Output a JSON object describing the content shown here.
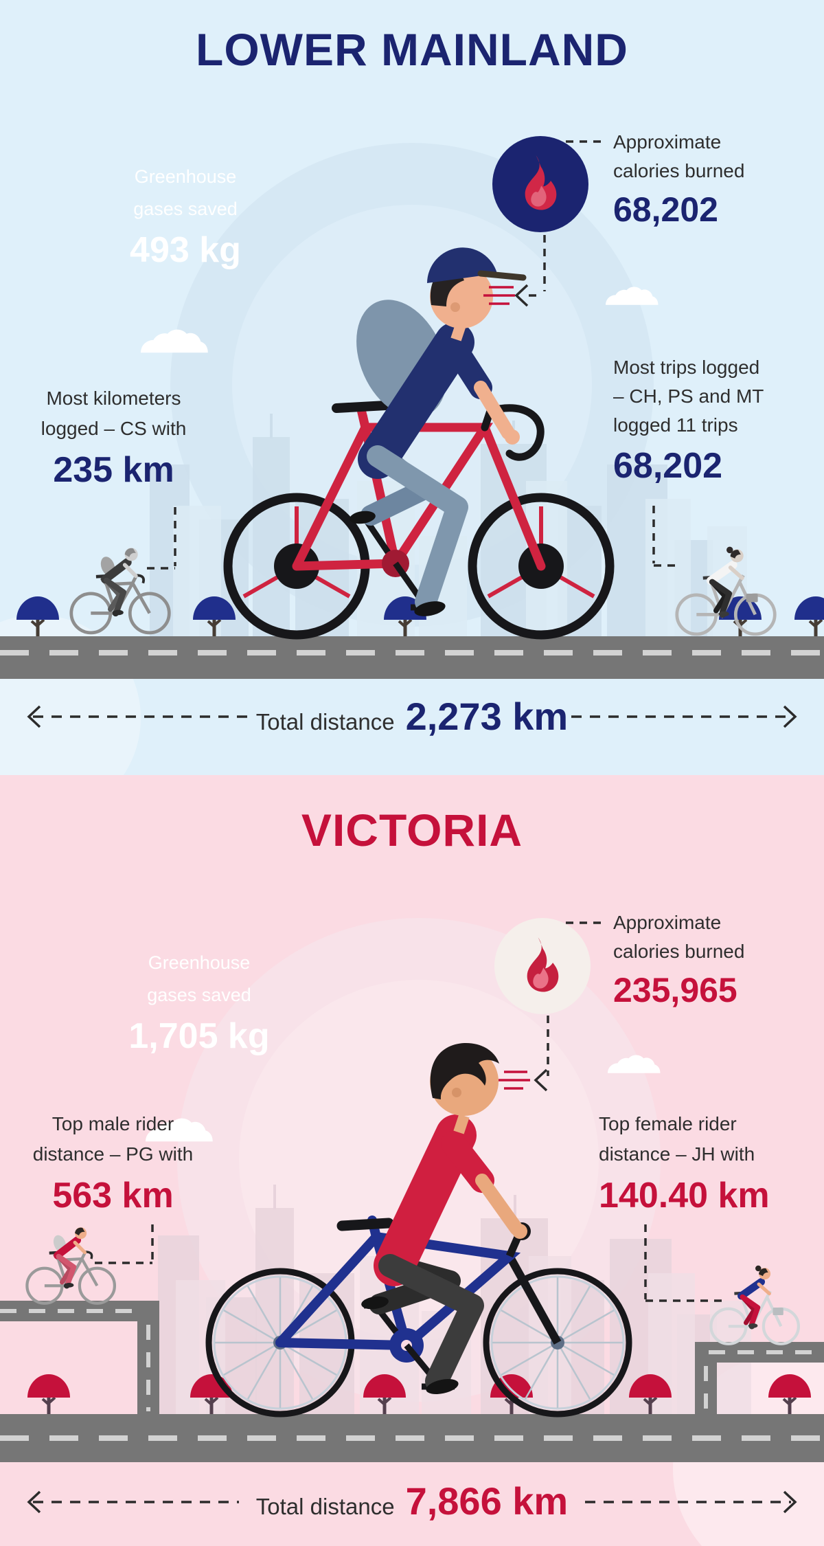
{
  "lm": {
    "title": "LOWER MAINLAND",
    "greenhouse": {
      "icon": "cloud-icon",
      "line1": "Greenhouse",
      "line2": "gases saved",
      "value": "493 kg"
    },
    "calories": {
      "icon": "flame-icon",
      "line1": "Approximate",
      "line2": "calories burned",
      "value": "68,202"
    },
    "stat_left": {
      "line1": "Most kilometers",
      "line2": "logged – CS with",
      "value": "235 km"
    },
    "stat_right": {
      "line1": "Most trips logged",
      "line2": "– CH, PS and MT",
      "line3": "logged 11 trips",
      "value": "68,202"
    },
    "total": {
      "label": "Total distance",
      "value": "2,273 km"
    },
    "colors": {
      "accent": "#1B2470",
      "background": "#DFF0FA",
      "cloud": "#5D7E98",
      "flame_circle": "#1B2470",
      "flame": "#D12747",
      "road": "#767676",
      "tree": "#202F8C"
    }
  },
  "vic": {
    "title": "VICTORIA",
    "greenhouse": {
      "icon": "cloud-icon",
      "line1": "Greenhouse",
      "line2": "gases saved",
      "value": "1,705 kg"
    },
    "calories": {
      "icon": "flame-icon",
      "line1": "Approximate",
      "line2": "calories burned",
      "value": "235,965"
    },
    "stat_left": {
      "line1": "Top male rider",
      "line2": "distance – PG with",
      "value": "563 km"
    },
    "stat_right": {
      "line1": "Top female rider",
      "line2": "distance – JH with",
      "value": "140.40 km"
    },
    "total": {
      "label": "Total distance",
      "value": "7,866 km"
    },
    "colors": {
      "accent": "#C5113B",
      "background": "#FBDBE3",
      "cloud": "#C5123B",
      "flame_circle": "#F5EFEB",
      "flame": "#C5203F",
      "road": "#767676",
      "tree": "#C5113B"
    }
  }
}
